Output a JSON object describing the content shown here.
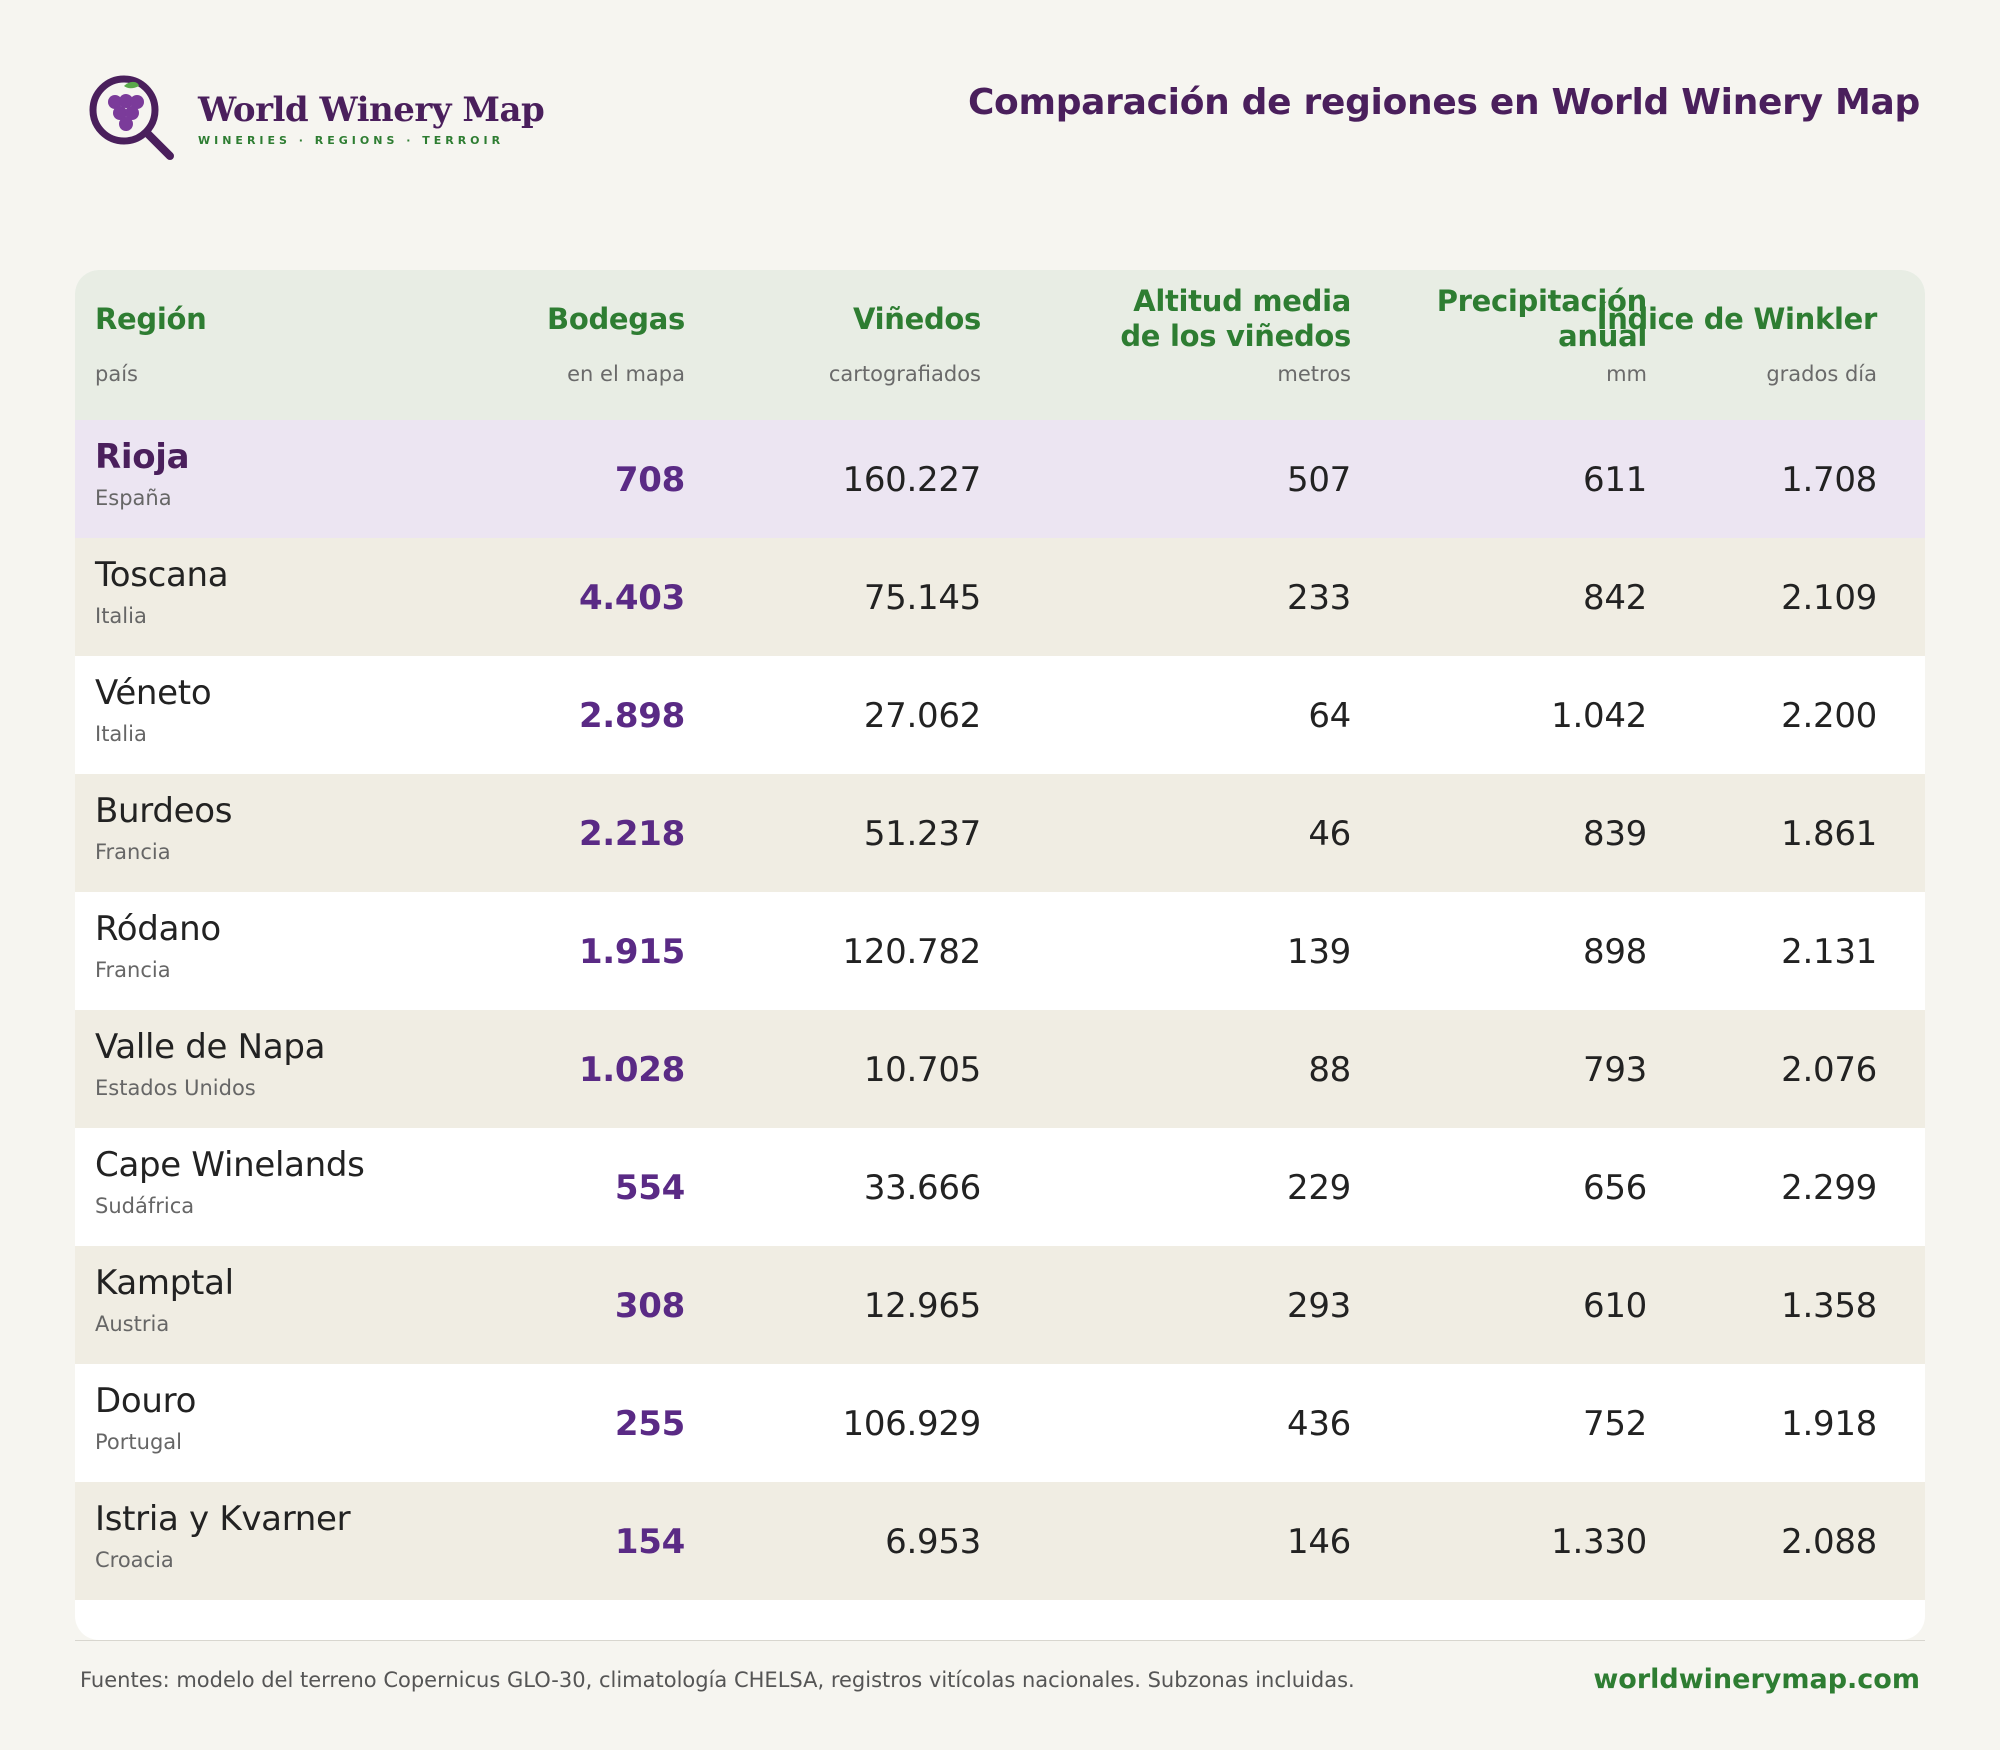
{
  "brand": {
    "name": "World Winery Map",
    "tagline": "WINERIES · REGIONS · TERROIR",
    "icon": "magnifier-grapes-icon"
  },
  "title": "Comparación de regiones en World Winery Map",
  "columns": [
    {
      "title_line1": "Región",
      "title_line2": "",
      "sub": "país"
    },
    {
      "title_line1": "Bodegas",
      "title_line2": "",
      "sub": "en el mapa"
    },
    {
      "title_line1": "Viñedos",
      "title_line2": "",
      "sub": "cartografiados"
    },
    {
      "title_line1": "Altitud media",
      "title_line2": "de los viñedos",
      "sub": "metros"
    },
    {
      "title_line1": "Precipitación",
      "title_line2": "anual",
      "sub": "mm"
    },
    {
      "title_line1": "Índice de Winkler",
      "title_line2": "",
      "sub": "grados día"
    }
  ],
  "rows": [
    {
      "region": "Rioja",
      "country": "España",
      "wineries": "708",
      "vineyards": "160.227",
      "altitude": "507",
      "precip": "611",
      "winkler": "1.708",
      "highlight": true
    },
    {
      "region": "Toscana",
      "country": "Italia",
      "wineries": "4.403",
      "vineyards": "75.145",
      "altitude": "233",
      "precip": "842",
      "winkler": "2.109"
    },
    {
      "region": "Véneto",
      "country": "Italia",
      "wineries": "2.898",
      "vineyards": "27.062",
      "altitude": "64",
      "precip": "1.042",
      "winkler": "2.200"
    },
    {
      "region": "Burdeos",
      "country": "Francia",
      "wineries": "2.218",
      "vineyards": "51.237",
      "altitude": "46",
      "precip": "839",
      "winkler": "1.861"
    },
    {
      "region": "Ródano",
      "country": "Francia",
      "wineries": "1.915",
      "vineyards": "120.782",
      "altitude": "139",
      "precip": "898",
      "winkler": "2.131"
    },
    {
      "region": "Valle de Napa",
      "country": "Estados Unidos",
      "wineries": "1.028",
      "vineyards": "10.705",
      "altitude": "88",
      "precip": "793",
      "winkler": "2.076"
    },
    {
      "region": "Cape Winelands",
      "country": "Sudáfrica",
      "wineries": "554",
      "vineyards": "33.666",
      "altitude": "229",
      "precip": "656",
      "winkler": "2.299"
    },
    {
      "region": "Kamptal",
      "country": "Austria",
      "wineries": "308",
      "vineyards": "12.965",
      "altitude": "293",
      "precip": "610",
      "winkler": "1.358"
    },
    {
      "region": "Douro",
      "country": "Portugal",
      "wineries": "255",
      "vineyards": "106.929",
      "altitude": "436",
      "precip": "752",
      "winkler": "1.918"
    },
    {
      "region": "Istria y Kvarner",
      "country": "Croacia",
      "wineries": "154",
      "vineyards": "6.953",
      "altitude": "146",
      "precip": "1.330",
      "winkler": "2.088"
    }
  ],
  "footer": {
    "sources": "Fuentes: modelo del terreno Copernicus GLO-30, climatología CHELSA, registros vitícolas nacionales. Subzonas incluidas.",
    "url": "worldwinerymap.com"
  },
  "colors": {
    "brand_purple": "#4a1f5c",
    "value_purple": "#5a2a85",
    "header_green": "#2e7d32",
    "highlight_row": "#ece5f2",
    "alt_row": "#f0ede3"
  }
}
